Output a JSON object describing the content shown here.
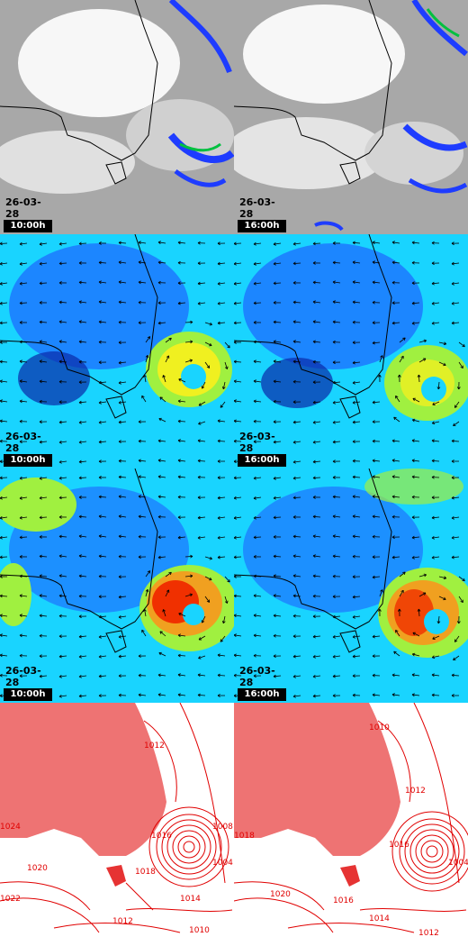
{
  "panels": [
    {
      "id": "cloud-1000",
      "type": "cloud",
      "date": "26-03-28",
      "time": "10:00h"
    },
    {
      "id": "cloud-1600",
      "type": "cloud",
      "date": "26-03-28",
      "time": "16:00h"
    },
    {
      "id": "wind-1000",
      "type": "wind",
      "date": "26-03-28",
      "time": "10:00h"
    },
    {
      "id": "wind-1600",
      "type": "wind",
      "date": "26-03-28",
      "time": "16:00h"
    },
    {
      "id": "gust-1000",
      "type": "gust",
      "date": "26-03-28",
      "time": "10:00h"
    },
    {
      "id": "gust-1600",
      "type": "gust",
      "date": "26-03-28",
      "time": "16:00h"
    },
    {
      "id": "pressure-1000",
      "type": "pressure",
      "date": "",
      "time": ""
    },
    {
      "id": "pressure-1600",
      "type": "pressure",
      "date": "",
      "time": ""
    }
  ],
  "isobars_left": [
    "1012",
    "1024",
    "1016",
    "1014",
    "1012",
    "1010",
    "1022",
    "1018",
    "1020",
    "1004",
    "1008"
  ],
  "isobars_right": [
    "1010",
    "1012",
    "1018",
    "1020",
    "1016",
    "1014",
    "1012",
    "1004",
    "1016"
  ],
  "colors": {
    "land_outline": "#000000",
    "isobar": "#e00000",
    "cloud_gray": "#a8a8a8",
    "cloud_white": "#ffffff",
    "rain_blue": "#1e3cff",
    "rain_green": "#00c040",
    "wind_blue": "#1e6cff",
    "wind_cyan": "#19d4ff",
    "wind_yellow": "#f0f020",
    "wind_red": "#f03000"
  }
}
